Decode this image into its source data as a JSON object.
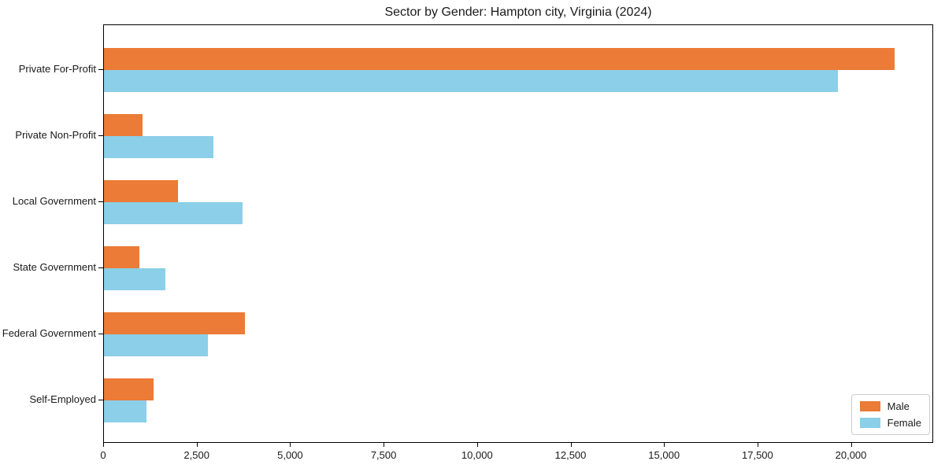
{
  "chart_data": {
    "type": "bar",
    "orientation": "horizontal",
    "title": "Sector by Gender: Hampton city, Virginia (2024)",
    "categories": [
      "Private For-Profit",
      "Private Non-Profit",
      "Local Government",
      "State Government",
      "Federal Government",
      "Self-Employed"
    ],
    "series": [
      {
        "name": "Male",
        "color": "#EB7B36",
        "values": [
          21140,
          1030,
          1980,
          950,
          3770,
          1330
        ]
      },
      {
        "name": "Female",
        "color": "#8BCFE8",
        "values": [
          19620,
          2930,
          3710,
          1640,
          2780,
          1140
        ]
      }
    ],
    "xlabel": "",
    "ylabel": "",
    "xlim": [
      0,
      22200
    ],
    "xticks": [
      0,
      2500,
      5000,
      7500,
      10000,
      12500,
      15000,
      17500,
      20000
    ],
    "xtick_labels": [
      "0",
      "2,500",
      "5,000",
      "7,500",
      "10,000",
      "12,500",
      "15,000",
      "17,500",
      "20,000"
    ],
    "grid": false,
    "legend": {
      "position": "lower right"
    },
    "colors": {
      "background": "#ffffff",
      "spine": "#000000",
      "legend_border": "#cccccc"
    }
  }
}
